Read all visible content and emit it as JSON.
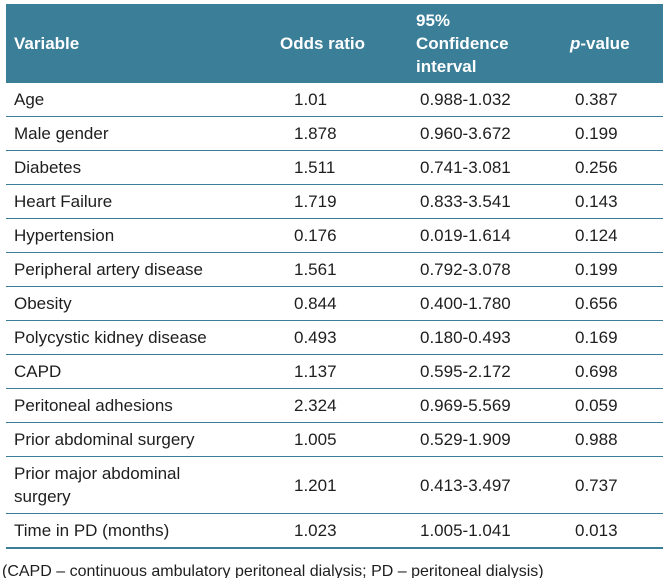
{
  "colors": {
    "header_background": "#3a7e97",
    "header_text": "#ffffff",
    "body_text": "#1e1e1e",
    "divider": "#3a7e97"
  },
  "table": {
    "header": {
      "variable": "Variable",
      "odds_ratio": "Odds ratio",
      "confidence_interval": "95%\nConfidence\ninterval",
      "p_italic": "p",
      "p_rest": "-value"
    },
    "rows": [
      {
        "variable": "Age",
        "odds_ratio": "1.01",
        "ci": "0.988-1.032",
        "p": "0.387"
      },
      {
        "variable": "Male gender",
        "odds_ratio": "1.878",
        "ci": "0.960-3.672",
        "p": "0.199"
      },
      {
        "variable": "Diabetes",
        "odds_ratio": "1.511",
        "ci": "0.741-3.081",
        "p": "0.256"
      },
      {
        "variable": "Heart Failure",
        "odds_ratio": "1.719",
        "ci": "0.833-3.541",
        "p": "0.143"
      },
      {
        "variable": "Hypertension",
        "odds_ratio": "0.176",
        "ci": "0.019-1.614",
        "p": "0.124"
      },
      {
        "variable": "Peripheral artery disease",
        "odds_ratio": "1.561",
        "ci": "0.792-3.078",
        "p": "0.199"
      },
      {
        "variable": "Obesity",
        "odds_ratio": "0.844",
        "ci": "0.400-1.780",
        "p": "0.656"
      },
      {
        "variable": "Polycystic kidney disease",
        "odds_ratio": "0.493",
        "ci": "0.180-0.493",
        "p": "0.169"
      },
      {
        "variable": "CAPD",
        "odds_ratio": "1.137",
        "ci": "0.595-2.172",
        "p": "0.698"
      },
      {
        "variable": "Peritoneal adhesions",
        "odds_ratio": "2.324",
        "ci": "0.969-5.569",
        "p": "0.059"
      },
      {
        "variable": "Prior abdominal surgery",
        "odds_ratio": "1.005",
        "ci": "0.529-1.909",
        "p": "0.988"
      },
      {
        "variable": "Prior major abdominal\nsurgery",
        "odds_ratio": "1.201",
        "ci": "0.413-3.497",
        "p": "0.737"
      },
      {
        "variable": "Time in PD (months)",
        "odds_ratio": "1.023",
        "ci": "1.005-1.041",
        "p": "0.013"
      }
    ]
  },
  "footnote": "(CAPD – continuous ambulatory peritoneal dialysis; PD – peritoneal dialysis)"
}
